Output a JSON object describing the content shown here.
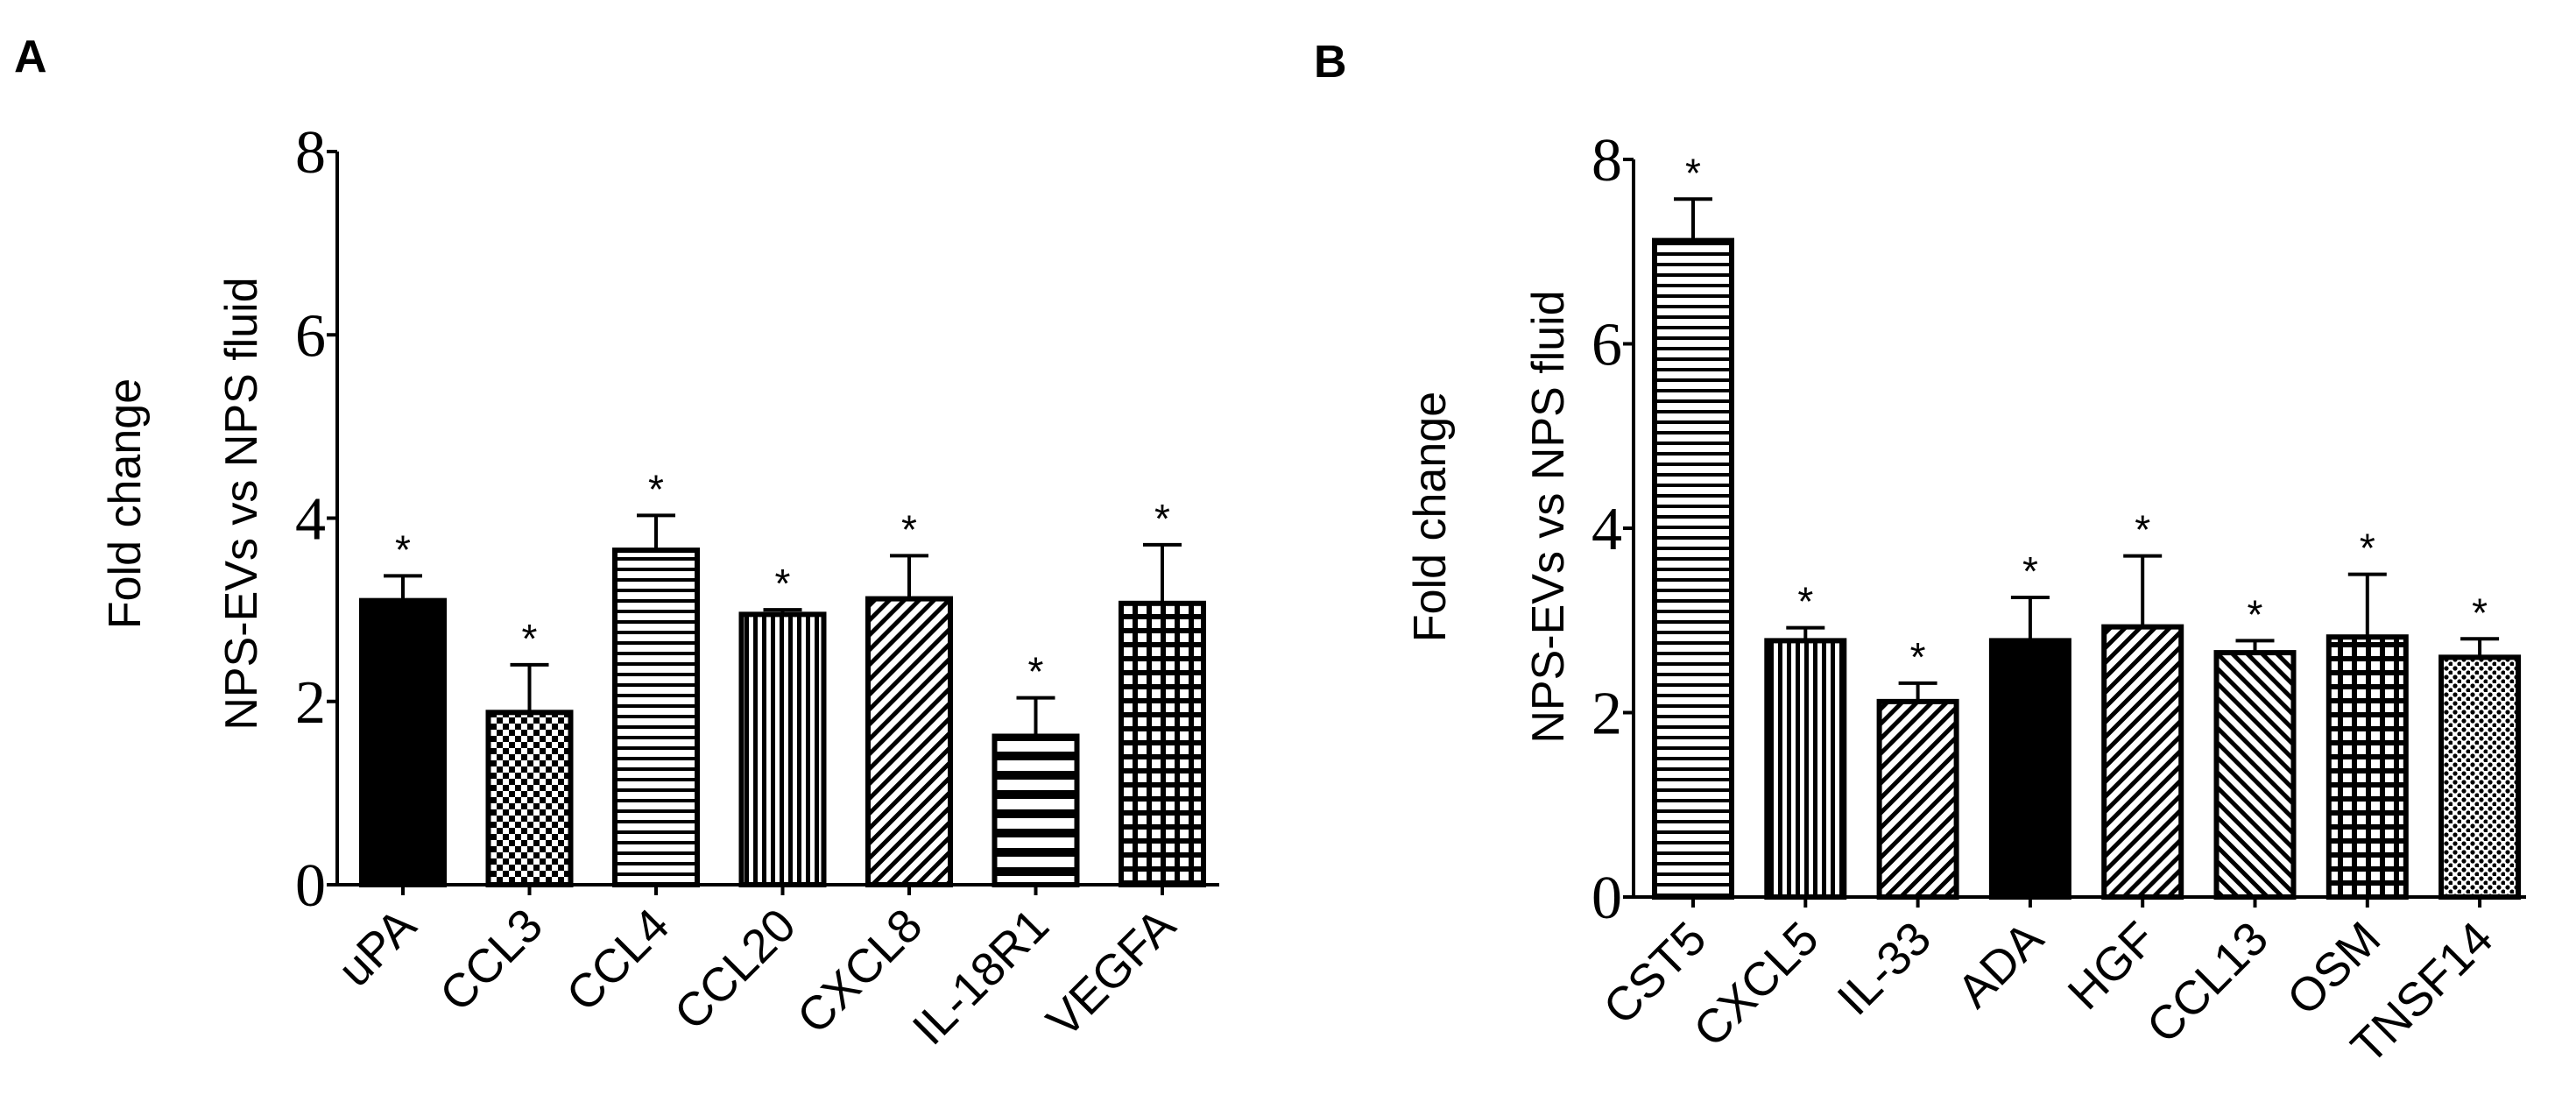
{
  "panels": [
    {
      "label": "A",
      "ylabel_line1": "Fold change",
      "ylabel_line2": "NPS-EVs vs NPS fluid"
    },
    {
      "label": "B",
      "ylabel_line1": "Fold change",
      "ylabel_line2": "NPS-EVs vs NPS fluid"
    }
  ],
  "chart_data": [
    {
      "type": "bar",
      "title": "A",
      "xlabel": "",
      "ylabel": "Fold change NPS-EVs vs NPS fluid",
      "ylim": [
        0,
        8
      ],
      "yticks": [
        0,
        2,
        4,
        6,
        8
      ],
      "categories": [
        "uPA",
        "CCL3",
        "CCL4",
        "CCL20",
        "CXCL8",
        "IL-18R1",
        "VEGFA"
      ],
      "values": [
        3.1,
        1.88,
        3.65,
        2.95,
        3.12,
        1.62,
        3.07
      ],
      "error_upper": [
        0.27,
        0.52,
        0.38,
        0.05,
        0.47,
        0.42,
        0.64
      ],
      "patterns": [
        "solid",
        "checker",
        "hlines",
        "vlines",
        "diag",
        "thick-hlines",
        "grid"
      ],
      "annotations": [
        "*",
        "*",
        "*",
        "*",
        "*",
        "*",
        "*"
      ]
    },
    {
      "type": "bar",
      "title": "B",
      "xlabel": "",
      "ylabel": "Fold change NPS-EVs vs NPS fluid",
      "ylim": [
        0,
        8
      ],
      "yticks": [
        0,
        2,
        4,
        6,
        8
      ],
      "categories": [
        "CST5",
        "CXCL5",
        "IL-33",
        "ADA",
        "HGF",
        "CCL13",
        "OSM",
        "TNSF14"
      ],
      "values": [
        7.12,
        2.78,
        2.12,
        2.78,
        2.93,
        2.65,
        2.82,
        2.6
      ],
      "error_upper": [
        0.45,
        0.14,
        0.2,
        0.47,
        0.77,
        0.13,
        0.68,
        0.2
      ],
      "patterns": [
        "hlines",
        "vlines",
        "diag",
        "solid",
        "diag",
        "backdiag",
        "grid",
        "dots"
      ],
      "annotations": [
        "*",
        "*",
        "*",
        "*",
        "*",
        "*",
        "*",
        "*"
      ]
    }
  ]
}
